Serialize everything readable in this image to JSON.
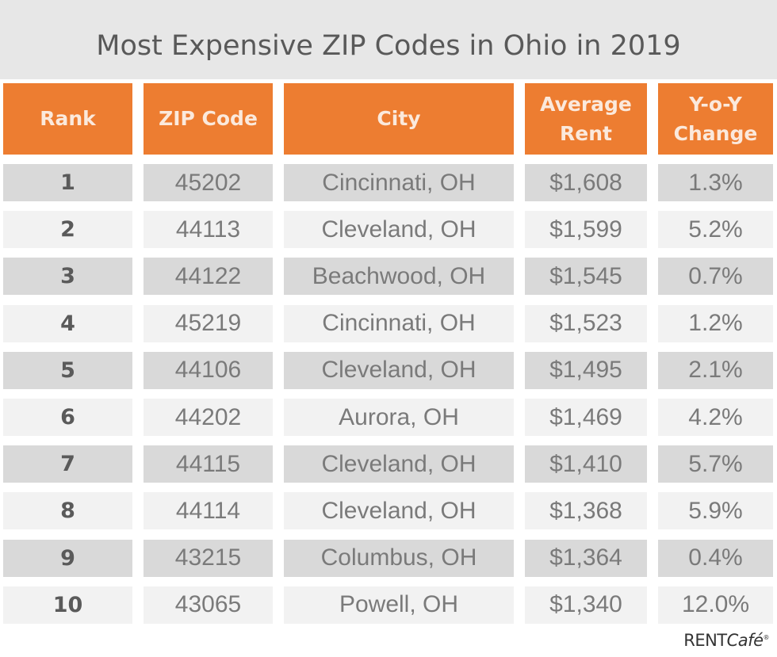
{
  "chart_data": {
    "type": "table",
    "title": "Most Expensive ZIP Codes in Ohio in 2019",
    "columns": [
      "Rank",
      "ZIP Code",
      "City",
      "Average Rent",
      "Y-o-Y Change"
    ],
    "rows": [
      [
        "1",
        "45202",
        "Cincinnati, OH",
        "$1,608",
        "1.3%"
      ],
      [
        "2",
        "44113",
        "Cleveland, OH",
        "$1,599",
        "5.2%"
      ],
      [
        "3",
        "44122",
        "Beachwood, OH",
        "$1,545",
        "0.7%"
      ],
      [
        "4",
        "45219",
        "Cincinnati, OH",
        "$1,523",
        "1.2%"
      ],
      [
        "5",
        "44106",
        "Cleveland, OH",
        "$1,495",
        "2.1%"
      ],
      [
        "6",
        "44202",
        "Aurora, OH",
        "$1,469",
        "4.2%"
      ],
      [
        "7",
        "44115",
        "Cleveland, OH",
        "$1,410",
        "5.7%"
      ],
      [
        "8",
        "44114",
        "Cleveland, OH",
        "$1,368",
        "5.9%"
      ],
      [
        "9",
        "43215",
        "Columbus, OH",
        "$1,364",
        "0.4%"
      ],
      [
        "10",
        "43065",
        "Powell, OH",
        "$1,340",
        "12.0%"
      ]
    ]
  },
  "header_lines": [
    [
      "Rank"
    ],
    [
      "ZIP Code"
    ],
    [
      "City"
    ],
    [
      "Average",
      "Rent"
    ],
    [
      "Y-o-Y",
      "Change"
    ]
  ],
  "logo": {
    "brand": "RENT",
    "cafe": "Café",
    "mark": "®"
  },
  "colors": {
    "header": "#ed7d31",
    "row_odd": "#d9d9d9",
    "row_even": "#f2f2f2",
    "title_band": "#e7e7e7"
  }
}
